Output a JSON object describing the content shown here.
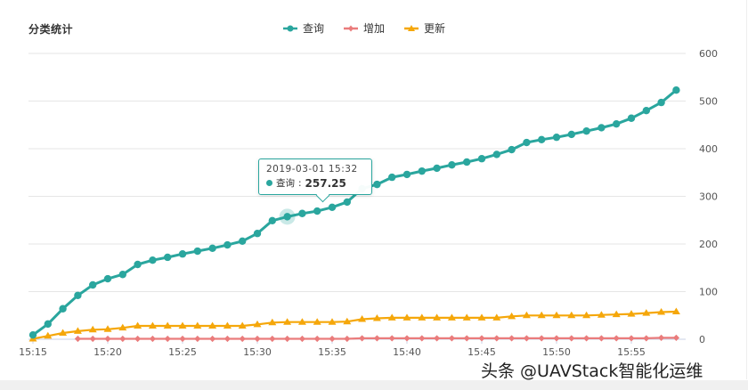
{
  "panel": {
    "title": "分类统计"
  },
  "legend": [
    {
      "label": "查询",
      "color": "#2aa69e",
      "symbol": "circle"
    },
    {
      "label": "增加",
      "color": "#ea7c7c",
      "symbol": "diamond"
    },
    {
      "label": "更新",
      "color": "#f5a70a",
      "symbol": "triangle"
    }
  ],
  "tooltip": {
    "date": "2019-03-01 15:32",
    "series": "查询",
    "value": "257.25"
  },
  "watermark": "头条 @UAVStack智能化运维",
  "chart_data": {
    "type": "line",
    "title": "分类统计",
    "xlabel": "",
    "ylabel": "",
    "ylim": [
      0,
      600
    ],
    "yticks": [
      0,
      100,
      200,
      300,
      400,
      500,
      600
    ],
    "y_axis_position": "right",
    "grid": true,
    "legend_position": "top-center",
    "xtick_labels": [
      "15:15",
      "15:20",
      "15:25",
      "15:30",
      "15:35",
      "15:40",
      "15:45",
      "15:50",
      "15:55"
    ],
    "x": [
      "15:15",
      "15:16",
      "15:17",
      "15:18",
      "15:19",
      "15:20",
      "15:21",
      "15:22",
      "15:23",
      "15:24",
      "15:25",
      "15:26",
      "15:27",
      "15:28",
      "15:29",
      "15:30",
      "15:31",
      "15:32",
      "15:33",
      "15:34",
      "15:35",
      "15:36",
      "15:37",
      "15:38",
      "15:39",
      "15:40",
      "15:41",
      "15:42",
      "15:43",
      "15:44",
      "15:45",
      "15:46",
      "15:47",
      "15:48",
      "15:49",
      "15:50",
      "15:51",
      "15:52",
      "15:53",
      "15:54",
      "15:55",
      "15:56",
      "15:57",
      "15:58"
    ],
    "series": [
      {
        "name": "查询",
        "color": "#2aa69e",
        "marker": "circle",
        "values": [
          9,
          32,
          64,
          92,
          114,
          127,
          136,
          157,
          166,
          172,
          179,
          185,
          191,
          198,
          206,
          222,
          249,
          257.25,
          264,
          269,
          277,
          288,
          316,
          325,
          340,
          346,
          353,
          359,
          366,
          372,
          379,
          388,
          398,
          413,
          419,
          424,
          430,
          437,
          444,
          452,
          464,
          480,
          497,
          523
        ]
      },
      {
        "name": "增加",
        "color": "#ea7c7c",
        "marker": "diamond",
        "values": [
          null,
          null,
          null,
          1,
          1,
          1,
          1,
          1,
          1,
          1,
          1,
          1,
          1,
          1,
          1,
          1,
          1,
          1,
          1,
          1,
          1,
          1,
          2,
          2,
          2,
          2,
          2,
          2,
          2,
          2,
          2,
          2,
          2,
          2,
          2,
          2,
          2,
          2,
          2,
          2,
          2,
          2,
          3,
          3
        ]
      },
      {
        "name": "更新",
        "color": "#f5a70a",
        "marker": "triangle",
        "values": [
          1,
          7,
          13,
          17,
          20,
          21,
          24,
          28,
          28,
          28,
          28,
          28,
          28,
          28,
          28,
          31,
          35,
          36,
          36,
          36,
          36,
          37,
          42,
          44,
          45,
          45,
          45,
          45,
          45,
          45,
          45,
          45,
          48,
          50,
          50,
          50,
          50,
          50,
          51,
          52,
          53,
          55,
          57,
          58
        ]
      }
    ],
    "highlight": {
      "series": "查询",
      "x": "15:32",
      "value": 257.25
    }
  }
}
